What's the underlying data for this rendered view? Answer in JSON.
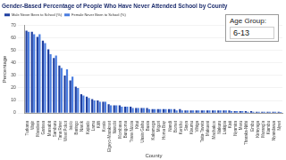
{
  "chart_data": {
    "type": "bar",
    "title": "Gender-Based Percentage of People Who Have Never Attended School by County",
    "x_label": "County",
    "y_label": "Percentage",
    "age_group_label": "Age Group:",
    "age_group": "6-13",
    "categories": [
      "Turkana",
      "Wajir",
      "Mandera",
      "Garissa",
      "Marsabit",
      "Samburu",
      "Tana River",
      "West Pokot",
      "Isiolo",
      "Baringo",
      "Narok",
      "Kajiado",
      "Lamu",
      "Kilifi",
      "Kwale",
      "Elgeyo-Marakwet",
      "Nairobi",
      "Mombasa",
      "Bungoma",
      "Trans Nzoia",
      "Kitui",
      "Uasin Gishu",
      "Busia",
      "Kakamega",
      "Migori",
      "Homa Bay",
      "Nandi",
      "Bomet",
      "Kericho",
      "Siaya",
      "Kisumu",
      "Vihiga",
      "Taita-Taveta",
      "Makueni",
      "Machakos",
      "Nakuru",
      "Laikipia",
      "Kisii",
      "Nyamira",
      "Meru",
      "Tharaka-Nithi",
      "Embu",
      "Kirinyaga",
      "Murang'a",
      "Kiambu",
      "Nyandarua",
      "Nyeri"
    ],
    "series": [
      {
        "name": "Male Never Been to School (%)",
        "color": "#1f3fa0",
        "values": [
          66,
          65,
          61,
          58,
          51,
          44,
          38,
          30,
          26,
          21,
          15,
          13,
          11,
          10,
          9,
          7,
          6,
          6,
          5,
          5,
          4,
          4,
          4,
          3,
          3,
          3,
          3,
          3,
          3,
          2,
          2,
          2,
          2,
          2,
          2,
          2,
          2,
          2,
          1.5,
          1.5,
          1.5,
          1.5,
          1,
          1,
          1,
          1,
          1
        ]
      },
      {
        "name": "Female Never Been to School (%)",
        "color": "#4a7de0",
        "values": [
          65,
          63,
          63,
          56,
          47,
          46,
          36,
          35,
          29,
          20,
          14,
          12,
          10,
          9,
          9,
          6,
          6,
          5,
          5,
          4,
          4,
          4,
          3,
          3,
          3,
          3,
          3,
          2,
          2,
          2,
          2,
          2,
          2,
          2,
          2,
          2,
          2,
          1.5,
          1.5,
          1.5,
          1,
          1,
          1,
          1,
          1,
          1,
          0.8
        ]
      }
    ],
    "ylim": [
      0,
      70
    ],
    "yticks": [
      0,
      10,
      20,
      30,
      40,
      50,
      60,
      70
    ],
    "grid": true,
    "legend": "top-left"
  }
}
